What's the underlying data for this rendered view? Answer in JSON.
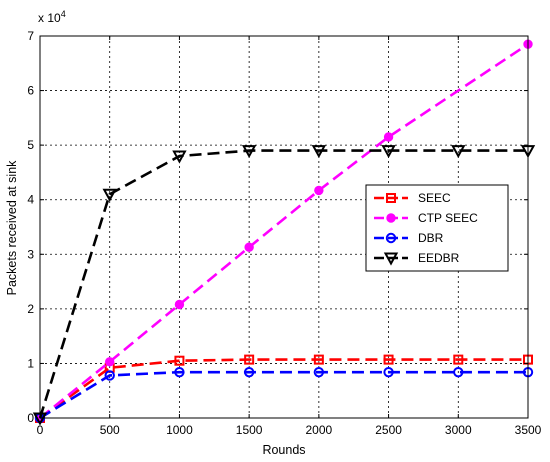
{
  "chart_data": {
    "type": "line",
    "title": "",
    "xlabel": "Rounds",
    "ylabel": "Packets received at sink",
    "y_multiplier_label": {
      "base": "x 10",
      "exponent": "4"
    },
    "xlim": [
      0,
      3500
    ],
    "ylim": [
      0,
      7
    ],
    "x_ticks": [
      "0",
      "500",
      "1000",
      "1500",
      "2000",
      "2500",
      "3000",
      "3500"
    ],
    "y_ticks": [
      "0",
      "1",
      "2",
      "3",
      "4",
      "5",
      "6",
      "7"
    ],
    "grid": true,
    "legend_position": "right-middle",
    "x": [
      0,
      500,
      1000,
      1500,
      2000,
      2500,
      3000,
      3500
    ],
    "series": [
      {
        "name": "SEEC",
        "color": "#ff0000",
        "marker": "square",
        "dash": "dashed",
        "values": [
          0,
          0.92,
          1.05,
          1.07,
          1.07,
          1.07,
          1.07,
          1.07
        ],
        "marker_x": [
          0,
          500,
          1000,
          1500,
          2000,
          2500,
          3000,
          3500
        ]
      },
      {
        "name": "CTP SEEC",
        "color": "#ff00ff",
        "marker": "filled-circle",
        "dash": "dashed",
        "values": [
          0,
          1.03,
          2.08,
          3.13,
          4.17,
          5.15,
          6.0,
          6.85
        ],
        "marker_x": [
          0,
          500,
          1000,
          1500,
          2000,
          2500,
          3500
        ]
      },
      {
        "name": "DBR",
        "color": "#0000ff",
        "marker": "circle",
        "dash": "dashed",
        "values": [
          0,
          0.78,
          0.84,
          0.84,
          0.84,
          0.84,
          0.84,
          0.84
        ],
        "marker_x": [
          0,
          500,
          1000,
          1500,
          2000,
          2500,
          3000,
          3500
        ]
      },
      {
        "name": "EEDBR",
        "color": "#000000",
        "marker": "triangle-down",
        "dash": "dashed",
        "values": [
          0,
          4.1,
          4.8,
          4.9,
          4.9,
          4.9,
          4.9,
          4.9
        ],
        "marker_x": [
          0,
          500,
          1000,
          1500,
          2000,
          2500,
          3000,
          3500
        ]
      }
    ]
  }
}
